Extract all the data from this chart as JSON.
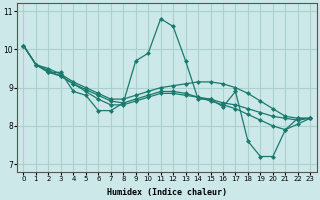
{
  "xlabel": "Humidex (Indice chaleur)",
  "ylabel": "",
  "background_color": "#cce8e8",
  "grid_color": "#aad0d0",
  "line_color": "#1a7a6e",
  "xlim": [
    -0.5,
    23.5
  ],
  "ylim": [
    6.8,
    11.2
  ],
  "yticks": [
    7,
    8,
    9,
    10,
    11
  ],
  "xticks": [
    0,
    1,
    2,
    3,
    4,
    5,
    6,
    7,
    8,
    9,
    10,
    11,
    12,
    13,
    14,
    15,
    16,
    17,
    18,
    19,
    20,
    21,
    22,
    23
  ],
  "series": [
    [
      10.1,
      9.6,
      9.4,
      9.4,
      8.9,
      8.8,
      8.4,
      8.4,
      8.6,
      9.7,
      9.9,
      10.8,
      10.6,
      9.7,
      8.7,
      8.7,
      8.5,
      8.9,
      7.6,
      7.2,
      7.2,
      7.9,
      8.2,
      8.2
    ],
    [
      10.1,
      9.6,
      9.4,
      9.3,
      9.1,
      8.95,
      8.8,
      8.65,
      8.6,
      8.7,
      8.8,
      8.9,
      8.9,
      8.85,
      8.75,
      8.7,
      8.6,
      8.55,
      8.45,
      8.35,
      8.25,
      8.2,
      8.15,
      8.2
    ],
    [
      10.1,
      9.6,
      9.45,
      9.3,
      9.1,
      8.9,
      8.7,
      8.55,
      8.55,
      8.65,
      8.75,
      8.85,
      8.85,
      8.8,
      8.75,
      8.65,
      8.55,
      8.45,
      8.3,
      8.15,
      8.0,
      7.9,
      8.05,
      8.2
    ],
    [
      10.1,
      9.6,
      9.5,
      9.35,
      9.15,
      9.0,
      8.85,
      8.7,
      8.7,
      8.8,
      8.9,
      9.0,
      9.05,
      9.1,
      9.15,
      9.15,
      9.1,
      9.0,
      8.85,
      8.65,
      8.45,
      8.25,
      8.2,
      8.2
    ]
  ]
}
